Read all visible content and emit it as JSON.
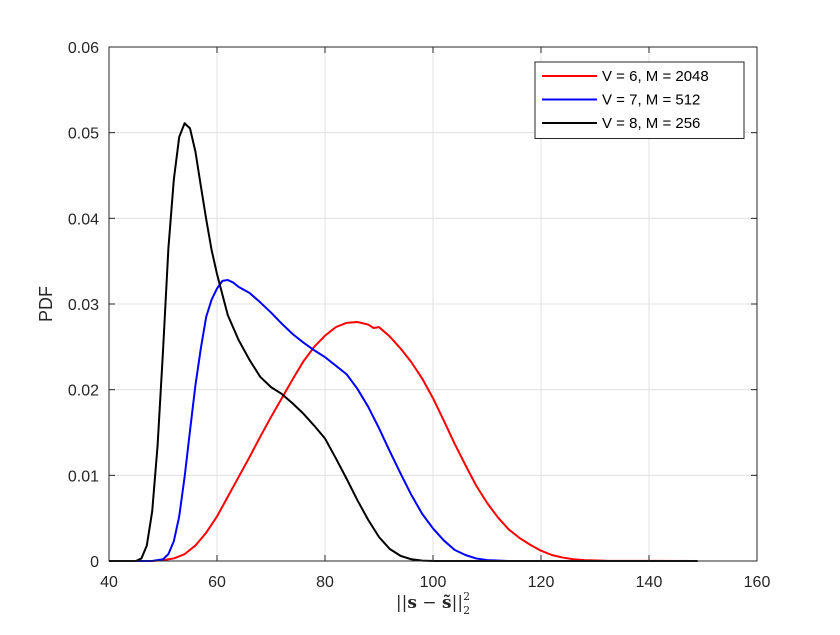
{
  "chart_data": {
    "type": "line",
    "title": "",
    "xlabel": "||s − s̃||²₂",
    "ylabel": "PDF",
    "xlim": [
      40,
      160
    ],
    "ylim": [
      0,
      0.06
    ],
    "x_ticks": [
      "40",
      "60",
      "80",
      "100",
      "120",
      "140",
      "160"
    ],
    "y_ticks": [
      "0",
      "0.01",
      "0.02",
      "0.03",
      "0.04",
      "0.05",
      "0.06"
    ],
    "grid": true,
    "legend_position": "top-right",
    "series": [
      {
        "name": "V = 6, M = 2048",
        "color": "#ff0000",
        "points": [
          [
            40,
            0
          ],
          [
            48,
            0
          ],
          [
            50,
            0.0001
          ],
          [
            52,
            0.0003
          ],
          [
            54,
            0.0008
          ],
          [
            56,
            0.0018
          ],
          [
            58,
            0.0033
          ],
          [
            60,
            0.0052
          ],
          [
            62,
            0.0075
          ],
          [
            64,
            0.0098
          ],
          [
            66,
            0.0121
          ],
          [
            68,
            0.0145
          ],
          [
            70,
            0.0168
          ],
          [
            72,
            0.019
          ],
          [
            74,
            0.0212
          ],
          [
            76,
            0.0233
          ],
          [
            78,
            0.025
          ],
          [
            80,
            0.0263
          ],
          [
            82,
            0.0273
          ],
          [
            84,
            0.0278
          ],
          [
            86,
            0.0279
          ],
          [
            88,
            0.0276
          ],
          [
            89,
            0.0272
          ],
          [
            90,
            0.0273
          ],
          [
            92,
            0.0262
          ],
          [
            94,
            0.0248
          ],
          [
            96,
            0.0232
          ],
          [
            98,
            0.0213
          ],
          [
            100,
            0.019
          ],
          [
            102,
            0.0164
          ],
          [
            104,
            0.0137
          ],
          [
            106,
            0.0112
          ],
          [
            108,
            0.0088
          ],
          [
            110,
            0.0068
          ],
          [
            112,
            0.0051
          ],
          [
            114,
            0.0037
          ],
          [
            116,
            0.0027
          ],
          [
            118,
            0.0019
          ],
          [
            120,
            0.0012
          ],
          [
            122,
            0.0007
          ],
          [
            124,
            0.0004
          ],
          [
            126,
            0.0002
          ],
          [
            128,
            0.0001
          ],
          [
            132,
            3e-05
          ],
          [
            140,
            1e-05
          ],
          [
            149,
            0
          ]
        ]
      },
      {
        "name": "V = 7, M = 512",
        "color": "#0000ff",
        "points": [
          [
            40,
            0
          ],
          [
            48,
            0
          ],
          [
            50,
            0.0002
          ],
          [
            51,
            0.0008
          ],
          [
            52,
            0.0023
          ],
          [
            53,
            0.0052
          ],
          [
            54,
            0.0098
          ],
          [
            55,
            0.0152
          ],
          [
            56,
            0.0205
          ],
          [
            57,
            0.0248
          ],
          [
            58,
            0.0285
          ],
          [
            59,
            0.0305
          ],
          [
            60,
            0.0318
          ],
          [
            61,
            0.0327
          ],
          [
            62,
            0.0328
          ],
          [
            63,
            0.0325
          ],
          [
            64,
            0.032
          ],
          [
            66,
            0.0313
          ],
          [
            68,
            0.0302
          ],
          [
            70,
            0.029
          ],
          [
            72,
            0.0277
          ],
          [
            74,
            0.0265
          ],
          [
            76,
            0.0255
          ],
          [
            78,
            0.0246
          ],
          [
            80,
            0.0238
          ],
          [
            82,
            0.0228
          ],
          [
            84,
            0.0218
          ],
          [
            86,
            0.0201
          ],
          [
            88,
            0.018
          ],
          [
            90,
            0.0155
          ],
          [
            92,
            0.0128
          ],
          [
            94,
            0.0102
          ],
          [
            96,
            0.0077
          ],
          [
            98,
            0.0055
          ],
          [
            100,
            0.0038
          ],
          [
            102,
            0.0024
          ],
          [
            104,
            0.0013
          ],
          [
            106,
            0.0007
          ],
          [
            108,
            0.0003
          ],
          [
            110,
            0.0001
          ],
          [
            114,
            0
          ],
          [
            149,
            0
          ]
        ]
      },
      {
        "name": "V = 8, M = 256",
        "color": "#000000",
        "points": [
          [
            40,
            0
          ],
          [
            45,
            0
          ],
          [
            46,
            0.0003
          ],
          [
            47,
            0.0018
          ],
          [
            48,
            0.0058
          ],
          [
            49,
            0.0135
          ],
          [
            50,
            0.0245
          ],
          [
            51,
            0.0365
          ],
          [
            52,
            0.0445
          ],
          [
            53,
            0.0495
          ],
          [
            54,
            0.0511
          ],
          [
            55,
            0.0505
          ],
          [
            56,
            0.0478
          ],
          [
            57,
            0.0438
          ],
          [
            58,
            0.0399
          ],
          [
            59,
            0.0363
          ],
          [
            60,
            0.0335
          ],
          [
            62,
            0.0287
          ],
          [
            64,
            0.0258
          ],
          [
            66,
            0.0235
          ],
          [
            68,
            0.0215
          ],
          [
            70,
            0.0203
          ],
          [
            72,
            0.0195
          ],
          [
            74,
            0.0184
          ],
          [
            76,
            0.0172
          ],
          [
            78,
            0.0158
          ],
          [
            80,
            0.0143
          ],
          [
            82,
            0.012
          ],
          [
            84,
            0.0096
          ],
          [
            86,
            0.0071
          ],
          [
            88,
            0.0048
          ],
          [
            90,
            0.0028
          ],
          [
            92,
            0.0014
          ],
          [
            94,
            0.0006
          ],
          [
            96,
            0.0002
          ],
          [
            98,
            5e-05
          ],
          [
            100,
            0
          ],
          [
            149,
            0
          ]
        ]
      }
    ]
  }
}
